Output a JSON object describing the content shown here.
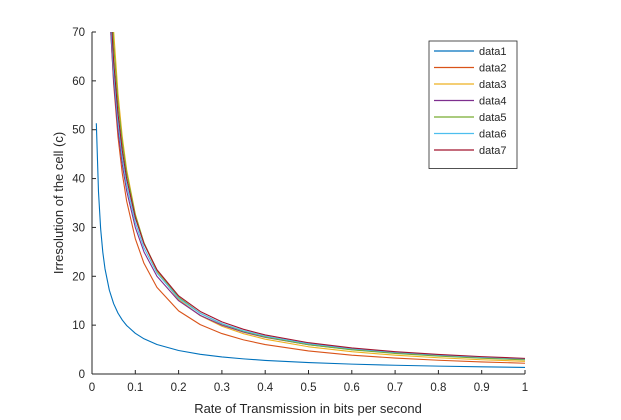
{
  "chart_data": {
    "type": "line",
    "title": "",
    "xlabel": "Rate of Transmission in bits per second",
    "ylabel": "Irresolution of the cell (c)",
    "xlim": [
      0,
      1
    ],
    "ylim": [
      0,
      70
    ],
    "xticks": [
      "0",
      "0.1",
      "0.2",
      "0.3",
      "0.4",
      "0.5",
      "0.6",
      "0.7",
      "0.8",
      "0.9",
      "1"
    ],
    "yticks": [
      "0",
      "10",
      "20",
      "30",
      "40",
      "50",
      "60",
      "70"
    ],
    "grid": false,
    "legend_position": "top-right",
    "curve_form": "y = a / x^b",
    "x": [
      0.01,
      0.015,
      0.02,
      0.025,
      0.03,
      0.04,
      0.05,
      0.06,
      0.07,
      0.08,
      0.1,
      0.12,
      0.15,
      0.2,
      0.25,
      0.3,
      0.35,
      0.4,
      0.5,
      0.6,
      0.7,
      0.8,
      0.9,
      1.0
    ],
    "series": [
      {
        "name": "data1",
        "color": "#0072BD",
        "a": 1.35,
        "b": 0.79
      },
      {
        "name": "data2",
        "color": "#D95319",
        "a": 2.2,
        "b": 1.1
      },
      {
        "name": "data3",
        "color": "#EDB120",
        "a": 2.6,
        "b": 1.1
      },
      {
        "name": "data4",
        "color": "#7E2F8E",
        "a": 3.0,
        "b": 1.0
      },
      {
        "name": "data5",
        "color": "#77AC30",
        "a": 2.9,
        "b": 1.05
      },
      {
        "name": "data6",
        "color": "#4DBEEE",
        "a": 3.1,
        "b": 1.0
      },
      {
        "name": "data7",
        "color": "#A2142F",
        "a": 3.2,
        "b": 1.0
      }
    ]
  }
}
